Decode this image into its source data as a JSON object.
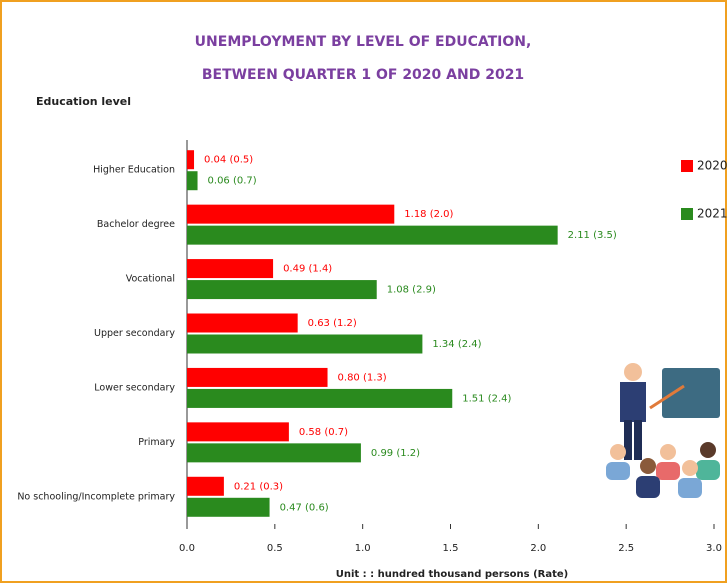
{
  "chart_data": {
    "type": "hbar",
    "title": "UNEMPLOYMENT BY LEVEL OF EDUCATION,",
    "subtitle": "BETWEEN QUARTER 1 OF 2020 AND 2021",
    "y_label": "Education level",
    "x_label": "Unit : : hundred thousand persons (Rate)",
    "categories": [
      "Higher Education",
      "Bachelor degree",
      "Vocational",
      "Upper secondary",
      "Lower secondary",
      "Primary",
      "No schooling/Incomplete primary"
    ],
    "series": [
      {
        "name": "2020",
        "color": "#ff0000",
        "values": [
          0.04,
          1.18,
          0.49,
          0.63,
          0.8,
          0.58,
          0.21
        ],
        "value_labels": [
          "0.04 (0.5)",
          "1.18 (2.0)",
          "0.49 (1.4)",
          "0.63 (1.2)",
          "0.80 (1.3)",
          "0.58 (0.7)",
          "0.21 (0.3)"
        ]
      },
      {
        "name": "2021",
        "color": "#2a8a1e",
        "values": [
          0.06,
          2.11,
          1.08,
          1.34,
          1.51,
          0.99,
          0.47
        ],
        "value_labels": [
          "0.06 (0.7)",
          "2.11 (3.5)",
          "1.08 (2.9)",
          "1.34 (2.4)",
          "1.51 (2.4)",
          "0.99 (1.2)",
          "0.47 (0.6)"
        ]
      }
    ],
    "xlim": [
      0,
      3
    ],
    "xticks": [
      {
        "value": 0,
        "label": "0.0"
      },
      0.5,
      {
        "value": 1,
        "label": "1.0"
      },
      1.5,
      {
        "value": 2,
        "label": "2.0"
      },
      2.5,
      {
        "value": 3,
        "label": "3.0"
      }
    ],
    "legend": "right"
  }
}
